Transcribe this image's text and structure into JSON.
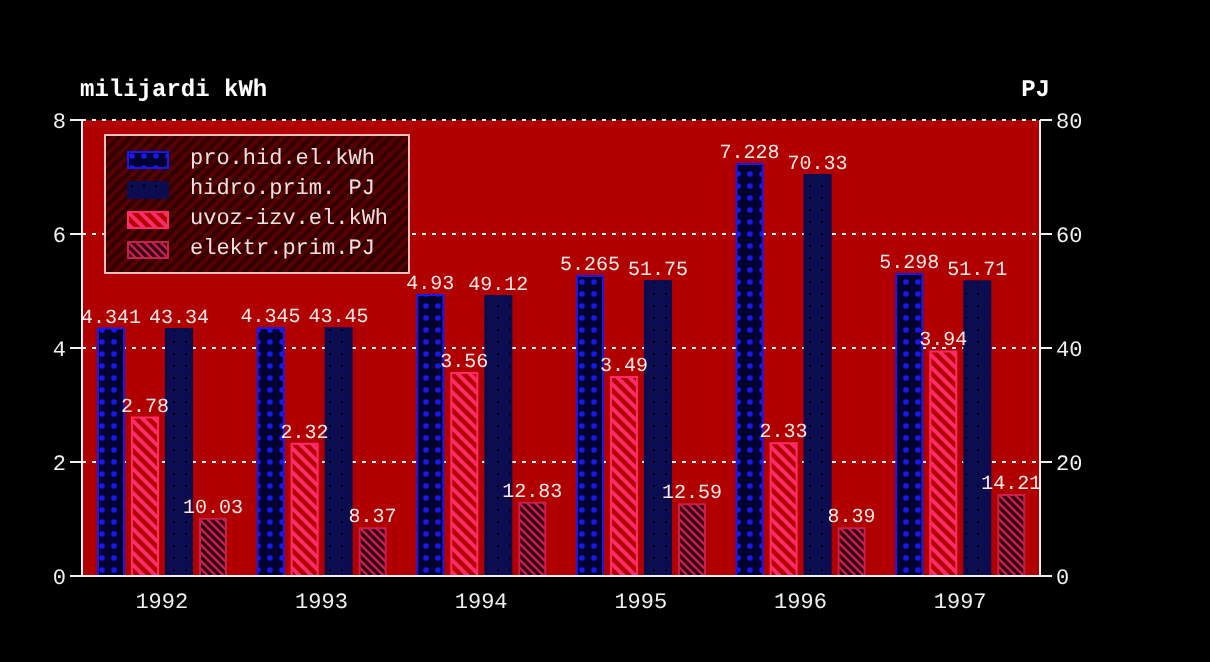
{
  "chart_data": {
    "type": "bar",
    "ylabel": "milijardi kWh",
    "y2label": "PJ",
    "categories": [
      "1992",
      "1993",
      "1994",
      "1995",
      "1996",
      "1997"
    ],
    "series": [
      {
        "name": "pro.hid.el.kWh",
        "color": "#1818f0",
        "values": [
          4.341,
          4.345,
          4.93,
          5.265,
          7.228,
          5.298
        ]
      },
      {
        "name": "hidro.prim. PJ",
        "color": "#0c0c50",
        "axis": "y2",
        "values": [
          43.34,
          43.45,
          49.12,
          51.75,
          70.33,
          51.71
        ]
      },
      {
        "name": "uvoz-izv.el.kWh",
        "color": "#ff2a6a",
        "values": [
          2.78,
          2.32,
          3.56,
          3.49,
          2.33,
          3.94
        ]
      },
      {
        "name": "elektr.prim.PJ",
        "color": "#c81e50",
        "axis": "y2",
        "values": [
          10.03,
          8.37,
          12.83,
          12.59,
          8.39,
          14.21
        ]
      }
    ],
    "ylim": [
      0,
      8
    ],
    "yticks": [
      0,
      2,
      4,
      6,
      8
    ],
    "y2lim": [
      0,
      80
    ],
    "y2ticks": [
      0,
      20,
      40,
      60,
      80
    ],
    "grid": "y",
    "legend": "top left",
    "data_labels": true
  }
}
